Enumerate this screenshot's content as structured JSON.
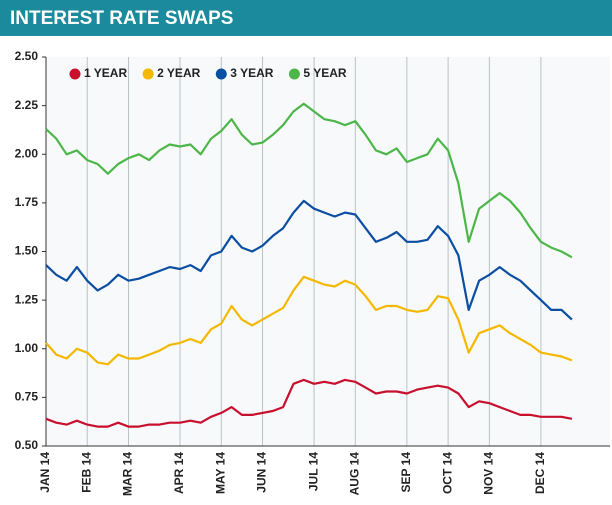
{
  "chart_data": {
    "type": "line",
    "title": "INTEREST RATE SWAPS",
    "categories": [
      "JAN 14",
      null,
      null,
      null,
      "FEB 14",
      null,
      null,
      null,
      "MAR 14",
      null,
      null,
      null,
      null,
      "APR 14",
      null,
      null,
      null,
      "MAY 14",
      null,
      null,
      null,
      "JUN 14",
      null,
      null,
      null,
      null,
      "JUL 14",
      null,
      null,
      null,
      "AUG 14",
      null,
      null,
      null,
      null,
      "SEP 14",
      null,
      null,
      null,
      "OCT 14",
      null,
      null,
      null,
      "NOV 14",
      null,
      null,
      null,
      null,
      "DEC 14",
      null,
      null,
      null
    ],
    "series": [
      {
        "name": "1 YEAR",
        "color": "#c8102e",
        "values": [
          0.64,
          0.62,
          0.61,
          0.63,
          0.61,
          0.6,
          0.6,
          0.62,
          0.6,
          0.6,
          0.61,
          0.61,
          0.62,
          0.62,
          0.63,
          0.62,
          0.65,
          0.67,
          0.7,
          0.66,
          0.66,
          0.67,
          0.68,
          0.7,
          0.82,
          0.84,
          0.82,
          0.83,
          0.82,
          0.84,
          0.83,
          0.8,
          0.77,
          0.78,
          0.78,
          0.77,
          0.79,
          0.8,
          0.81,
          0.8,
          0.77,
          0.7,
          0.73,
          0.72,
          0.7,
          0.68,
          0.66,
          0.66,
          0.65,
          0.65,
          0.65,
          0.64
        ]
      },
      {
        "name": "2 YEAR",
        "color": "#f5b800",
        "values": [
          1.03,
          0.97,
          0.95,
          1.0,
          0.98,
          0.93,
          0.92,
          0.97,
          0.95,
          0.95,
          0.97,
          0.99,
          1.02,
          1.03,
          1.05,
          1.03,
          1.1,
          1.13,
          1.22,
          1.15,
          1.12,
          1.15,
          1.18,
          1.21,
          1.3,
          1.37,
          1.35,
          1.33,
          1.32,
          1.35,
          1.33,
          1.27,
          1.2,
          1.22,
          1.22,
          1.2,
          1.19,
          1.2,
          1.27,
          1.26,
          1.15,
          0.98,
          1.08,
          1.1,
          1.12,
          1.08,
          1.05,
          1.02,
          0.98,
          0.97,
          0.96,
          0.94
        ]
      },
      {
        "name": "3 YEAR",
        "color": "#0b4ea2",
        "values": [
          1.43,
          1.38,
          1.35,
          1.42,
          1.35,
          1.3,
          1.33,
          1.38,
          1.35,
          1.36,
          1.38,
          1.4,
          1.42,
          1.41,
          1.43,
          1.4,
          1.48,
          1.5,
          1.58,
          1.52,
          1.5,
          1.53,
          1.58,
          1.62,
          1.7,
          1.76,
          1.72,
          1.7,
          1.68,
          1.7,
          1.69,
          1.62,
          1.55,
          1.57,
          1.6,
          1.55,
          1.55,
          1.56,
          1.63,
          1.58,
          1.48,
          1.2,
          1.35,
          1.38,
          1.42,
          1.38,
          1.35,
          1.3,
          1.25,
          1.2,
          1.2,
          1.15
        ]
      },
      {
        "name": "5 YEAR",
        "color": "#4cb748",
        "values": [
          2.13,
          2.08,
          2.0,
          2.02,
          1.97,
          1.95,
          1.9,
          1.95,
          1.98,
          2.0,
          1.97,
          2.02,
          2.05,
          2.04,
          2.05,
          2.0,
          2.08,
          2.12,
          2.18,
          2.1,
          2.05,
          2.06,
          2.1,
          2.15,
          2.22,
          2.26,
          2.22,
          2.18,
          2.17,
          2.15,
          2.17,
          2.1,
          2.02,
          2.0,
          2.03,
          1.96,
          1.98,
          2.0,
          2.08,
          2.02,
          1.85,
          1.55,
          1.72,
          1.76,
          1.8,
          1.76,
          1.7,
          1.62,
          1.55,
          1.52,
          1.5,
          1.47
        ]
      }
    ],
    "ylim": [
      0.5,
      2.5
    ],
    "yticks": [
      {
        "value": 0.5,
        "label": "0.50"
      },
      0.75,
      {
        "value": 1.0,
        "label": "1.00"
      },
      1.25,
      {
        "value": 1.5,
        "label": "1.50"
      },
      1.75,
      {
        "value": 2.0,
        "label": "2.00"
      },
      2.25,
      {
        "value": 2.5,
        "label": "2.50"
      }
    ],
    "grid": true,
    "legend": "upper left"
  }
}
